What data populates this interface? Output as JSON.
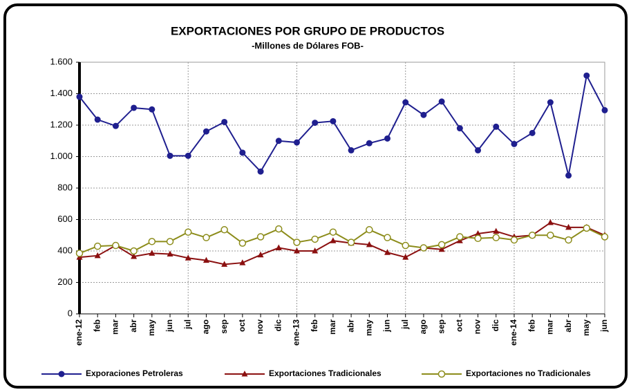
{
  "chart_data": {
    "type": "line",
    "title": "EXPORTACIONES POR GRUPO DE PRODUCTOS",
    "subtitle": "-Millones de Dólares FOB-",
    "categories": [
      "ene-12",
      "feb",
      "mar",
      "abr",
      "may",
      "jun",
      "jul",
      "ago",
      "sep",
      "oct",
      "nov",
      "dic",
      "ene-13",
      "feb",
      "mar",
      "abr",
      "may",
      "jun",
      "jul",
      "ago",
      "sep",
      "oct",
      "nov",
      "dic",
      "ene-14",
      "feb",
      "mar",
      "abr",
      "may",
      "jun"
    ],
    "series": [
      {
        "name": "Exporaciones Petroleras",
        "color": "#1f1f8f",
        "marker": "circle",
        "values": [
          1380,
          1235,
          1195,
          1310,
          1300,
          1005,
          1005,
          1160,
          1220,
          1025,
          905,
          1100,
          1090,
          1215,
          1225,
          1040,
          1085,
          1115,
          1345,
          1265,
          1350,
          1180,
          1040,
          1190,
          1080,
          1150,
          1345,
          880,
          1515,
          1295
        ]
      },
      {
        "name": "Exportaciones Tradicionales",
        "color": "#8b1010",
        "marker": "triangle",
        "values": [
          360,
          370,
          435,
          365,
          385,
          380,
          355,
          340,
          315,
          325,
          375,
          420,
          400,
          400,
          465,
          450,
          440,
          390,
          360,
          420,
          410,
          465,
          510,
          525,
          490,
          500,
          580,
          550,
          550,
          500
        ]
      },
      {
        "name": "Exportaciones no Tradicionales",
        "color": "#8c8c1a",
        "marker": "open-circle",
        "values": [
          385,
          430,
          435,
          400,
          460,
          460,
          520,
          485,
          535,
          450,
          490,
          540,
          455,
          475,
          520,
          455,
          535,
          485,
          435,
          420,
          440,
          490,
          480,
          485,
          470,
          500,
          500,
          470,
          545,
          490
        ]
      }
    ],
    "ylim": [
      0,
      1600
    ],
    "yticks": [
      0,
      200,
      400,
      600,
      800,
      {
        "value": 1000,
        "label": "1.000"
      },
      {
        "value": 1200,
        "label": "1.200"
      },
      {
        "value": 1400,
        "label": "1.400"
      },
      {
        "value": 1600,
        "label": "1.600"
      }
    ],
    "grid": true
  }
}
